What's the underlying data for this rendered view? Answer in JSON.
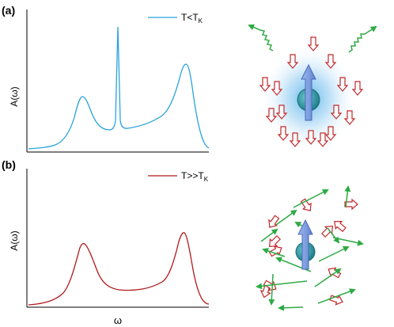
{
  "panels": [
    {
      "tag": "(a)",
      "ylabel": "A(ω)",
      "legend": {
        "label": "T<T",
        "sub": "K"
      },
      "color": "#29a3dc",
      "regime": "low-temperature Kondo: sharp central resonance",
      "spin_cloud": true
    },
    {
      "tag": "(b)",
      "ylabel": "A(ω)",
      "legend": {
        "label": "T>>T",
        "sub": "K"
      },
      "color": "#b0191a",
      "regime": "high-temperature: no central resonance",
      "spin_cloud": false
    }
  ],
  "xlabel": "ω",
  "colors": {
    "electron_arrow_fill": "#ffffff",
    "electron_arrow_stroke": "#c0282b",
    "photon": "#2eaa45",
    "impurity_spin": "#7f9fe0",
    "impurity_ball": "#2f9aa6",
    "glow": "#7ec6ef"
  }
}
